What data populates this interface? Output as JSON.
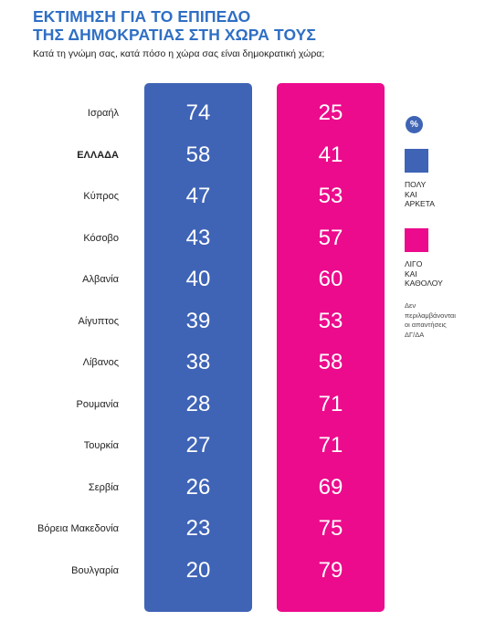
{
  "header": {
    "title_line1": "ΕΚΤΙΜΗΣΗ ΓΙΑ ΤΟ ΕΠΙΠΕΔΟ",
    "title_line2": "ΤΗΣ ΔΗΜΟΚΡΑΤΙΑΣ ΣΤΗ ΧΩΡΑ ΤΟΥΣ",
    "subtitle": "Κατά τη γνώμη σας, κατά πόσο η χώρα σας είναι δημοκρατική χώρα;"
  },
  "legend": {
    "unit": "%",
    "series1_label_lines": [
      "ΠΟΛΥ",
      "ΚΑΙ",
      "ΑΡΚΕΤΑ"
    ],
    "series2_label_lines": [
      "ΛΙΓΟ",
      "ΚΑΙ",
      "ΚΑΘΟΛΟΥ"
    ],
    "note_lines": [
      "Δεν",
      "περιλαμβάνονται",
      "οι απαντήσεις",
      "ΔΓ/ΔΑ"
    ]
  },
  "colors": {
    "title": "#2f6fc4",
    "series1": "#3f64b6",
    "series2": "#ec0b8c",
    "pct_badge": "#3f64b6"
  },
  "chart_data": {
    "type": "table",
    "title": "ΕΚΤΙΜΗΣΗ ΓΙΑ ΤΟ ΕΠΙΠΕΔΟ ΤΗΣ ΔΗΜΟΚΡΑΤΙΑΣ ΣΤΗ ΧΩΡΑ ΤΟΥΣ",
    "subtitle": "Κατά τη γνώμη σας, κατά πόσο η χώρα σας είναι δημοκρατική χώρα;",
    "unit": "%",
    "categories": [
      "Ισραήλ",
      "ΕΛΛΑΔΑ",
      "Κύπρος",
      "Κόσοβο",
      "Αλβανία",
      "Αίγυπτος",
      "Λίβανος",
      "Ρουμανία",
      "Τουρκία",
      "Σερβία",
      "Βόρεια Μακεδονία",
      "Βουλγαρία"
    ],
    "highlight": [
      "ΕΛΛΑΔΑ"
    ],
    "series": [
      {
        "name": "ΠΟΛΥ ΚΑΙ ΑΡΚΕΤΑ",
        "values": [
          74,
          58,
          47,
          43,
          40,
          39,
          38,
          28,
          27,
          26,
          23,
          20
        ]
      },
      {
        "name": "ΛΙΓΟ ΚΑΙ ΚΑΘΟΛΟΥ",
        "values": [
          25,
          41,
          53,
          57,
          60,
          53,
          58,
          71,
          71,
          69,
          75,
          79
        ]
      }
    ]
  }
}
